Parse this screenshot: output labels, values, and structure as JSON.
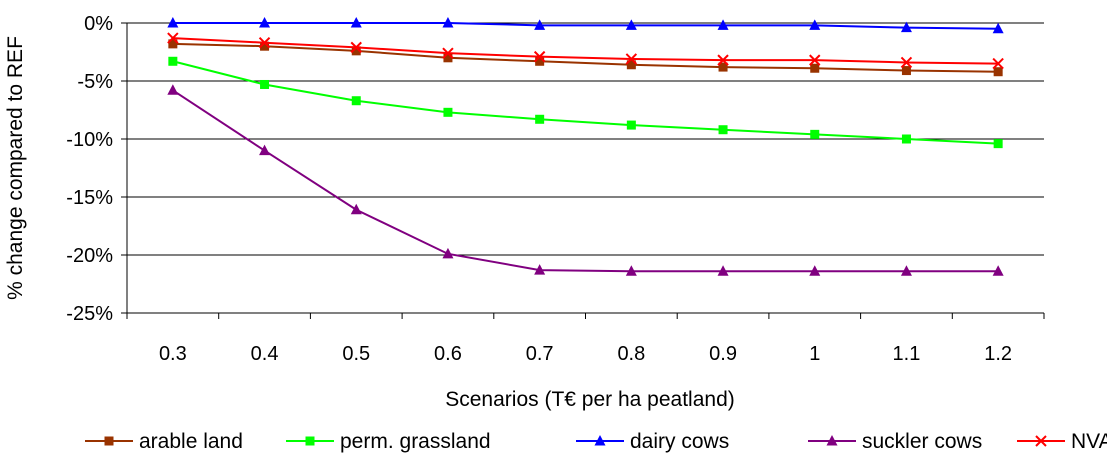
{
  "chart_data": {
    "type": "line",
    "title": "",
    "xlabel": "Scenarios (T€ per ha peatland)",
    "ylabel": "% change compared to REF",
    "categories": [
      "0.3",
      "0.4",
      "0.5",
      "0.6",
      "0.7",
      "0.8",
      "0.9",
      "1",
      "1.1",
      "1.2"
    ],
    "yticks": [
      "0%",
      "-5%",
      "-10%",
      "-15%",
      "-20%",
      "-25%"
    ],
    "ylim": [
      -25,
      0
    ],
    "y_unit": "%",
    "grid": true,
    "legend_position": "bottom",
    "series": [
      {
        "name": "arable land",
        "color": "#993300",
        "marker": "square",
        "values": [
          -1.8,
          -2.0,
          -2.4,
          -3.0,
          -3.3,
          -3.6,
          -3.8,
          -3.9,
          -4.1,
          -4.2
        ]
      },
      {
        "name": "perm. grassland",
        "color": "#00ff00",
        "marker": "square",
        "values": [
          -3.3,
          -5.3,
          -6.7,
          -7.7,
          -8.3,
          -8.8,
          -9.2,
          -9.6,
          -10.0,
          -10.4
        ]
      },
      {
        "name": "dairy cows",
        "color": "#0000ff",
        "marker": "triangle",
        "values": [
          0.0,
          0.0,
          0.0,
          0.0,
          -0.2,
          -0.2,
          -0.2,
          -0.2,
          -0.4,
          -0.5
        ]
      },
      {
        "name": "suckler cows",
        "color": "#800080",
        "marker": "triangle",
        "values": [
          -5.8,
          -11.0,
          -16.1,
          -19.9,
          -21.3,
          -21.4,
          -21.4,
          -21.4,
          -21.4,
          -21.4
        ]
      },
      {
        "name": "NVAF",
        "color": "#ff0000",
        "marker": "x",
        "values": [
          -1.3,
          -1.7,
          -2.1,
          -2.6,
          -2.9,
          -3.1,
          -3.2,
          -3.2,
          -3.4,
          -3.5
        ]
      }
    ]
  }
}
